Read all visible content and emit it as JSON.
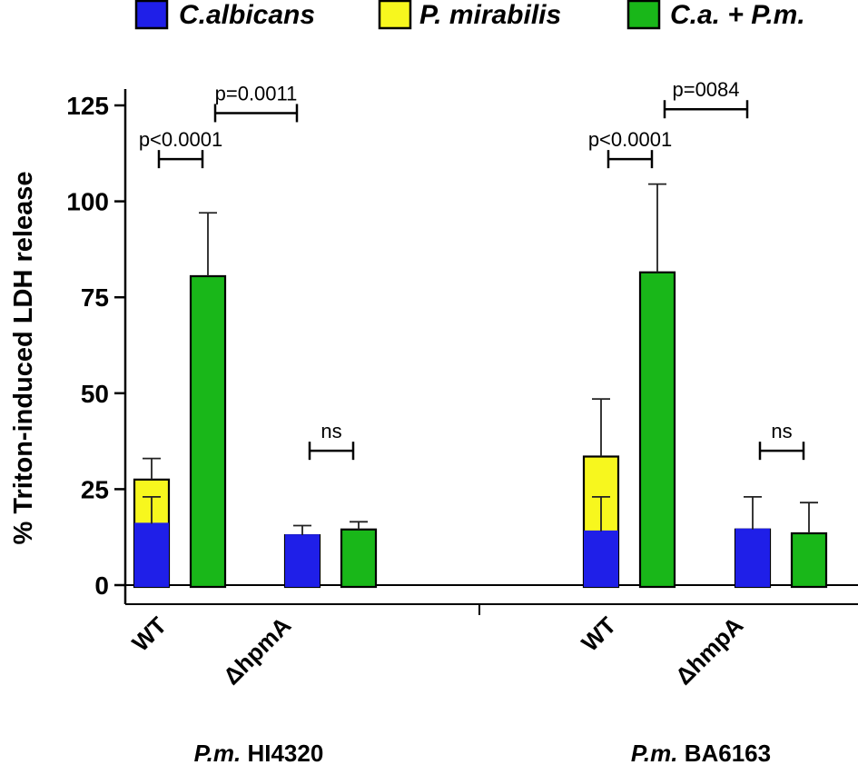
{
  "chart_data": {
    "type": "bar",
    "title": "",
    "ylabel": "% Triton-induced LDH release",
    "ylim": [
      -8,
      125
    ],
    "yticks": [
      0,
      25,
      50,
      75,
      100,
      125
    ],
    "legend": {
      "placement": "top",
      "entries": [
        {
          "label": "C.albicans",
          "color": "#1f1fe8"
        },
        {
          "label": "P. mirabilis",
          "color": "#f7f71e"
        },
        {
          "label": "C.a. + P.m.",
          "color": "#19b719"
        }
      ]
    },
    "groups": [
      {
        "strain_prefix": "P.m.",
        "strain_name": " HI4320",
        "categories": [
          {
            "label": "WT",
            "single_bar": {
              "candida": 16,
              "proteus": 27.5,
              "err_candida": 23,
              "err_proteus": 33
            },
            "combo": {
              "value": 80.5,
              "err": 97
            }
          },
          {
            "label": "ΔhpmA",
            "single_bar": {
              "candida": 13,
              "proteus": 13,
              "err_candida": 15.5,
              "err_proteus": null
            },
            "combo": {
              "value": 14.5,
              "err": 16.5
            }
          }
        ]
      },
      {
        "strain_prefix": "P.m.",
        "strain_name": " BA6163",
        "categories": [
          {
            "label": "WT",
            "single_bar": {
              "candida": 14,
              "proteus": 33.5,
              "err_candida": 23,
              "err_proteus": 48.5
            },
            "combo": {
              "value": 81.5,
              "err": 104.5
            }
          },
          {
            "label": "ΔhmpA",
            "single_bar": {
              "candida": 14.5,
              "proteus": 14.5,
              "err_candida": 23,
              "err_proteus": null
            },
            "combo": {
              "value": 13.5,
              "err": 21.5
            }
          }
        ]
      }
    ],
    "annotations": [
      {
        "text": "p<0.0001",
        "from": "g0.c0.single",
        "to": "g0.c0.combo",
        "level": 111
      },
      {
        "text": "p=0.0011",
        "from": "g0.c0.combo",
        "to": "g0.c1.single",
        "level": 123
      },
      {
        "text": "ns",
        "from": "g0.c1.single",
        "to": "g0.c1.combo",
        "level": 35
      },
      {
        "text": "p<0.0001",
        "from": "g1.c0.single",
        "to": "g1.c0.combo",
        "level": 111
      },
      {
        "text": "p=0084",
        "from": "g1.c0.combo",
        "to": "g1.c1.single",
        "level": 124
      },
      {
        "text": "ns",
        "from": "g1.c1.single",
        "to": "g1.c1.combo",
        "level": 35
      }
    ]
  }
}
